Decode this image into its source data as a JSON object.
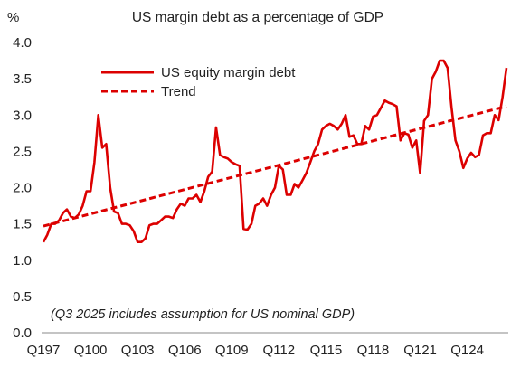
{
  "chart_data": {
    "type": "line",
    "title": "US margin debt as a percentage of GDP",
    "ylabel": "%",
    "xlabel": "",
    "ylim": [
      0.0,
      4.0
    ],
    "yticks": [
      "0.0",
      "0.5",
      "1.0",
      "1.5",
      "2.0",
      "2.5",
      "3.0",
      "3.5",
      "4.0"
    ],
    "xticks": [
      "Q197",
      "Q100",
      "Q103",
      "Q106",
      "Q109",
      "Q112",
      "Q115",
      "Q118",
      "Q121",
      "Q124"
    ],
    "grid": false,
    "legend_position": "top-left",
    "annotation": "(Q3 2025 includes assumption for US nominal GDP)",
    "x_start_quarter": "Q1 1997",
    "x_end_quarter": "Q3 2025",
    "series": [
      {
        "name": "US equity margin debt",
        "style": "solid",
        "color": "#dc0000",
        "values": [
          1.25,
          1.35,
          1.5,
          1.5,
          1.55,
          1.65,
          1.7,
          1.6,
          1.58,
          1.63,
          1.75,
          1.95,
          1.95,
          2.35,
          3.0,
          2.55,
          2.6,
          2.0,
          1.67,
          1.65,
          1.5,
          1.5,
          1.48,
          1.4,
          1.25,
          1.25,
          1.3,
          1.48,
          1.5,
          1.5,
          1.55,
          1.6,
          1.6,
          1.58,
          1.7,
          1.78,
          1.75,
          1.85,
          1.85,
          1.9,
          1.8,
          1.95,
          2.15,
          2.22,
          2.83,
          2.45,
          2.42,
          2.4,
          2.35,
          2.32,
          2.3,
          1.43,
          1.42,
          1.5,
          1.75,
          1.78,
          1.85,
          1.75,
          1.9,
          2.0,
          2.3,
          2.25,
          1.9,
          1.9,
          2.05,
          2.0,
          2.1,
          2.2,
          2.35,
          2.5,
          2.6,
          2.8,
          2.85,
          2.88,
          2.85,
          2.8,
          2.88,
          3.0,
          2.7,
          2.72,
          2.6,
          2.6,
          2.85,
          2.8,
          2.98,
          3.0,
          3.1,
          3.2,
          3.17,
          3.15,
          3.12,
          2.65,
          2.75,
          2.73,
          2.55,
          2.65,
          2.2,
          2.92,
          3.0,
          3.5,
          3.6,
          3.75,
          3.75,
          3.65,
          3.1,
          2.65,
          2.5,
          2.27,
          2.4,
          2.48,
          2.42,
          2.45,
          2.72,
          2.75,
          2.75,
          3.0,
          2.93,
          3.25,
          3.65
        ]
      },
      {
        "name": "Trend",
        "style": "dashed",
        "color": "#dc0000",
        "values": [
          1.47,
          3.12
        ]
      }
    ]
  }
}
